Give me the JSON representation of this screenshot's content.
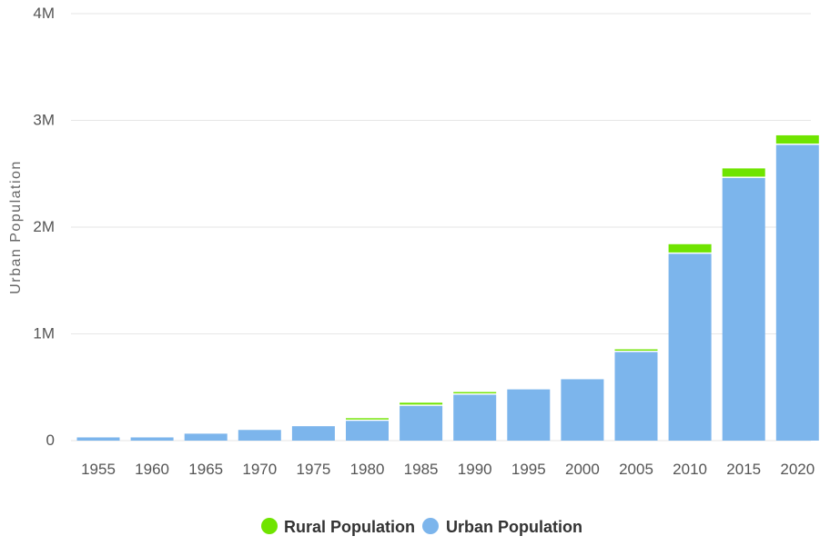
{
  "chart_data": {
    "type": "bar",
    "stacked": true,
    "categories": [
      "1955",
      "1960",
      "1965",
      "1970",
      "1975",
      "1980",
      "1985",
      "1990",
      "1995",
      "2000",
      "2005",
      "2010",
      "2015",
      "2020"
    ],
    "series": [
      {
        "name": "Urban Population",
        "color": "#7cb5ec",
        "values": [
          30000,
          30000,
          65000,
          100000,
          135000,
          185000,
          325000,
          430000,
          480000,
          575000,
          830000,
          1750000,
          2460000,
          2770000
        ]
      },
      {
        "name": "Rural Population",
        "color": "#6fe400",
        "values": [
          0,
          0,
          0,
          0,
          0,
          25000,
          30000,
          25000,
          0,
          0,
          25000,
          90000,
          90000,
          90000
        ]
      }
    ],
    "ylabel": "Urban Population",
    "xlabel": "",
    "ylim": [
      0,
      4000000
    ],
    "yticks": [
      {
        "value": 0,
        "label": "0"
      },
      {
        "value": 1000000,
        "label": "1M"
      },
      {
        "value": 2000000,
        "label": "2M"
      },
      {
        "value": 3000000,
        "label": "3M"
      },
      {
        "value": 4000000,
        "label": "4M"
      }
    ],
    "grid": true,
    "legend_position": "bottom-center",
    "legend": [
      {
        "name": "Rural Population",
        "color": "#6fe400"
      },
      {
        "name": "Urban Population",
        "color": "#7cb5ec"
      }
    ]
  }
}
